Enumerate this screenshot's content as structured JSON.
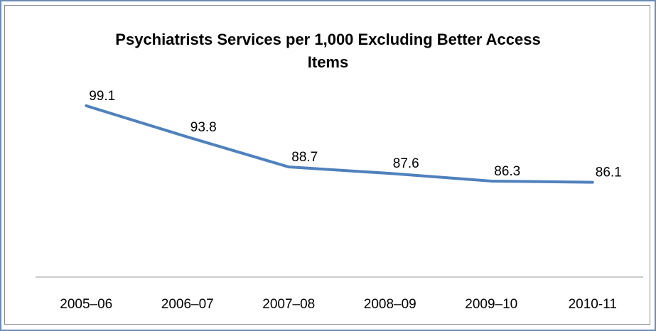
{
  "chart_data": {
    "type": "line",
    "title_lines": [
      "Psychiatrists Services per 1,000 Excluding Better Access",
      "Items"
    ],
    "categories": [
      "2005–06",
      "2006–07",
      "2007–08",
      "2008–09",
      "2009–10",
      "2010-11"
    ],
    "series": [
      {
        "values": [
          99.1,
          93.8,
          88.7,
          87.6,
          86.3,
          86.1
        ],
        "data_labels": [
          "99.1",
          "93.8",
          "88.7",
          "87.6",
          "86.3",
          "86.1"
        ],
        "color": "#4f81bd"
      }
    ],
    "ylim": [
      70,
      105
    ],
    "grid": false,
    "legend": "none"
  }
}
